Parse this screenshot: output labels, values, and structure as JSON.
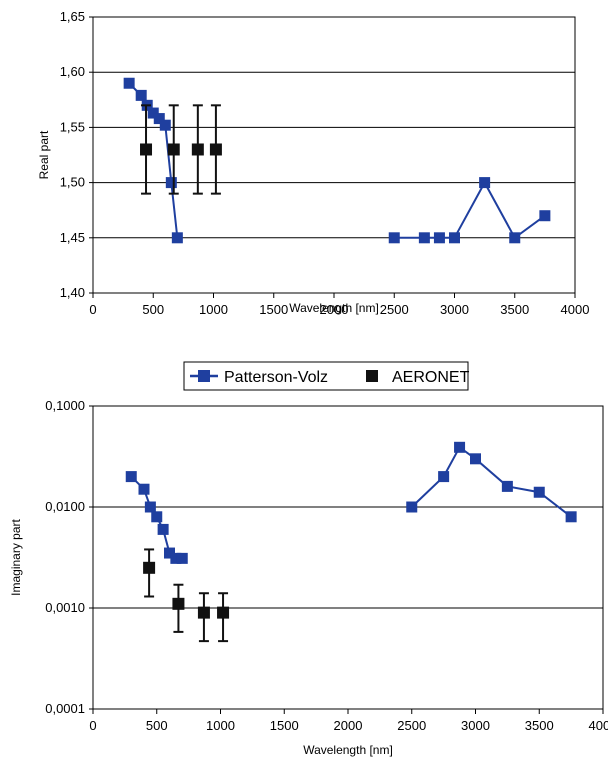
{
  "chart_data": [
    {
      "type": "scatter",
      "xlabel": "Wavelength [nm]",
      "ylabel": "Real part",
      "xlim": [
        0,
        4000
      ],
      "ylim": [
        1.4,
        1.65
      ],
      "x_ticks": [
        0,
        500,
        1000,
        1500,
        2000,
        2500,
        3000,
        3500,
        4000
      ],
      "x_tick_labels": [
        "0",
        "500",
        "1000",
        "1500",
        "2000",
        "2500",
        "3000",
        "3500",
        "4000"
      ],
      "y_ticks": [
        1.4,
        1.45,
        1.5,
        1.55,
        1.6,
        1.65
      ],
      "y_tick_labels": [
        "1,40",
        "1,45",
        "1,50",
        "1,55",
        "1,60",
        "1,65"
      ],
      "grid": "horizontal",
      "series": [
        {
          "name": "Patterson-Volz",
          "color": "#1f3f9f",
          "marker": "square",
          "segments": [
            {
              "x": [
                300,
                400,
                450,
                500,
                550,
                600,
                650,
                700
              ],
              "y": [
                1.59,
                1.579,
                1.57,
                1.563,
                1.558,
                1.552,
                1.5,
                1.45
              ]
            },
            {
              "x": [
                2500,
                2750,
                2875,
                3000,
                3250,
                3500,
                3750
              ],
              "y": [
                1.45,
                1.45,
                1.45,
                1.45,
                1.5,
                1.45,
                1.47
              ]
            }
          ]
        },
        {
          "name": "AERONET",
          "color": "#111111",
          "marker": "square",
          "x": [
            440,
            670,
            870,
            1020
          ],
          "y": [
            1.53,
            1.53,
            1.53,
            1.53
          ],
          "err_low": [
            1.49,
            1.49,
            1.49,
            1.49
          ],
          "err_high": [
            1.57,
            1.57,
            1.57,
            1.57
          ]
        }
      ]
    },
    {
      "type": "scatter",
      "xlabel": "Wavelength [nm]",
      "ylabel": "Imaginary part",
      "yscale": "log",
      "xlim": [
        0,
        4000
      ],
      "ylim": [
        0.0001,
        0.1
      ],
      "x_ticks": [
        0,
        500,
        1000,
        1500,
        2000,
        2500,
        3000,
        3500,
        4000
      ],
      "x_tick_labels": [
        "0",
        "500",
        "1000",
        "1500",
        "2000",
        "2500",
        "3000",
        "3500",
        "4000"
      ],
      "y_ticks": [
        0.0001,
        0.001,
        0.01,
        0.1
      ],
      "y_tick_labels": [
        "0,0001",
        "0,0010",
        "0,0100",
        "0,1000"
      ],
      "grid": "horizontal",
      "series": [
        {
          "name": "Patterson-Volz",
          "color": "#1f3f9f",
          "marker": "square",
          "segments": [
            {
              "x": [
                300,
                400,
                450,
                500,
                550,
                600,
                650,
                700
              ],
              "y": [
                0.02,
                0.015,
                0.01,
                0.008,
                0.006,
                0.0035,
                0.0031,
                0.0031
              ]
            },
            {
              "x": [
                2500,
                2750,
                2875,
                3000,
                3250,
                3500,
                3750
              ],
              "y": [
                0.01,
                0.02,
                0.039,
                0.03,
                0.016,
                0.014,
                0.008
              ]
            }
          ]
        },
        {
          "name": "AERONET",
          "color": "#111111",
          "marker": "square",
          "x": [
            440,
            670,
            870,
            1020
          ],
          "y": [
            0.0025,
            0.0011,
            0.0009,
            0.0009
          ],
          "err_low": [
            0.0013,
            0.00058,
            0.00047,
            0.00047
          ],
          "err_high": [
            0.0038,
            0.0017,
            0.0014,
            0.0014
          ]
        }
      ]
    }
  ],
  "legend": {
    "placement": "between-charts",
    "items": [
      {
        "label": "Patterson-Volz",
        "color": "#1f3f9f"
      },
      {
        "label": "AERONET",
        "color": "#111111"
      }
    ]
  }
}
